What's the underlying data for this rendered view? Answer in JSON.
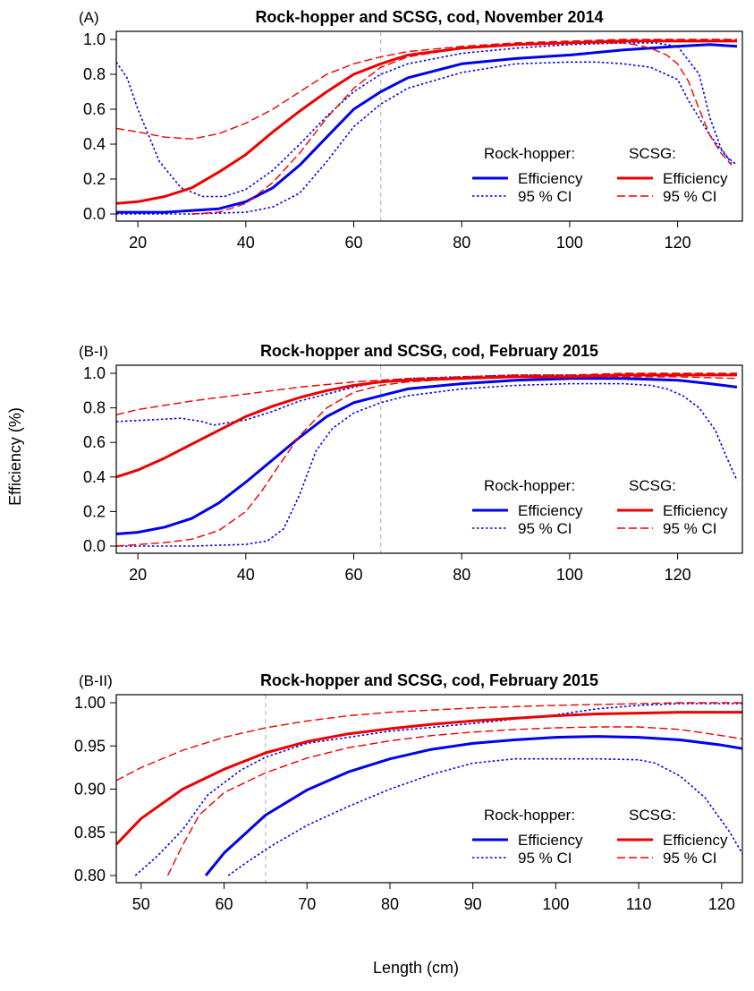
{
  "figure": {
    "ylabel": "Efficiency (%)",
    "xlabel": "Length (cm)",
    "colors": {
      "rockhopper": "#0000ee",
      "scsg": "#ee0000",
      "reference": "#bbbbbb"
    }
  },
  "chart_data": [
    {
      "type": "line",
      "panel_label": "(A)",
      "title": "Rock-hopper and SCSG, cod, November 2014",
      "xlim": [
        16,
        132
      ],
      "ylim": [
        0.0,
        1.0
      ],
      "xticks": [
        20,
        40,
        60,
        80,
        100,
        120
      ],
      "yticks": [
        0.0,
        0.2,
        0.4,
        0.6,
        0.8,
        1.0
      ],
      "ytick_labels": [
        "0.0",
        "0.2",
        "0.4",
        "0.6",
        "0.8",
        "1.0"
      ],
      "reference_x": 65,
      "legend": {
        "groups": [
          {
            "header": "Rock-hopper:",
            "items": [
              "Efficiency",
              "95 % CI"
            ]
          },
          {
            "header": "SCSG:",
            "items": [
              "Efficiency",
              "95 % CI"
            ]
          }
        ]
      },
      "series": [
        {
          "group": "Rock-hopper",
          "kind": "Efficiency",
          "color": "#0000ee",
          "style": "solid",
          "x": [
            16,
            25,
            35,
            40,
            45,
            50,
            55,
            60,
            65,
            70,
            80,
            90,
            100,
            110,
            120,
            126,
            131
          ],
          "y": [
            0.01,
            0.01,
            0.03,
            0.07,
            0.15,
            0.28,
            0.44,
            0.6,
            0.7,
            0.78,
            0.86,
            0.89,
            0.91,
            0.94,
            0.96,
            0.97,
            0.96
          ]
        },
        {
          "group": "Rock-hopper",
          "kind": "95 % CI upper",
          "color": "#0000ee",
          "style": "dotted",
          "x": [
            16,
            18,
            20,
            24,
            28,
            32,
            36,
            40,
            45,
            50,
            55,
            60,
            65,
            70,
            80,
            90,
            100,
            110,
            116,
            120,
            124,
            126,
            128,
            130
          ],
          "y": [
            0.87,
            0.78,
            0.6,
            0.3,
            0.15,
            0.1,
            0.1,
            0.14,
            0.25,
            0.4,
            0.56,
            0.7,
            0.8,
            0.86,
            0.92,
            0.95,
            0.97,
            0.98,
            0.98,
            0.96,
            0.8,
            0.55,
            0.38,
            0.29
          ]
        },
        {
          "group": "Rock-hopper",
          "kind": "95 % CI lower",
          "color": "#0000ee",
          "style": "dotted",
          "x": [
            16,
            30,
            40,
            45,
            50,
            55,
            60,
            65,
            70,
            80,
            90,
            100,
            105,
            110,
            115,
            120,
            122,
            126,
            129,
            131
          ],
          "y": [
            0.0,
            0.0,
            0.01,
            0.04,
            0.12,
            0.3,
            0.5,
            0.63,
            0.72,
            0.81,
            0.86,
            0.87,
            0.87,
            0.86,
            0.84,
            0.77,
            0.65,
            0.45,
            0.33,
            0.28
          ]
        },
        {
          "group": "SCSG",
          "kind": "Efficiency",
          "color": "#ee0000",
          "style": "solid",
          "x": [
            16,
            20,
            25,
            30,
            35,
            40,
            45,
            50,
            55,
            60,
            65,
            70,
            80,
            90,
            100,
            110,
            120,
            125,
            131
          ],
          "y": [
            0.06,
            0.07,
            0.1,
            0.15,
            0.24,
            0.34,
            0.47,
            0.59,
            0.7,
            0.8,
            0.86,
            0.91,
            0.95,
            0.97,
            0.98,
            0.99,
            0.99,
            0.99,
            0.99
          ]
        },
        {
          "group": "SCSG",
          "kind": "95 % CI upper",
          "color": "#ee0000",
          "style": "dashed",
          "x": [
            16,
            20,
            25,
            30,
            35,
            40,
            45,
            50,
            55,
            60,
            65,
            70,
            80,
            90,
            100,
            110,
            120,
            131
          ],
          "y": [
            0.49,
            0.47,
            0.44,
            0.43,
            0.46,
            0.52,
            0.6,
            0.7,
            0.8,
            0.86,
            0.9,
            0.93,
            0.96,
            0.98,
            0.99,
            1.0,
            1.0,
            1.0
          ]
        },
        {
          "group": "SCSG",
          "kind": "95 % CI lower",
          "color": "#ee0000",
          "style": "dashed",
          "x": [
            30,
            35,
            40,
            45,
            50,
            55,
            60,
            65,
            70,
            80,
            90,
            100,
            110,
            112,
            115,
            118,
            120,
            122,
            124,
            126,
            128,
            130
          ],
          "y": [
            0.0,
            0.01,
            0.06,
            0.18,
            0.35,
            0.55,
            0.72,
            0.84,
            0.9,
            0.95,
            0.97,
            0.98,
            0.98,
            0.97,
            0.95,
            0.91,
            0.86,
            0.76,
            0.6,
            0.45,
            0.35,
            0.28
          ]
        }
      ]
    },
    {
      "type": "line",
      "panel_label": "(B-I)",
      "title": "Rock-hopper and SCSG, cod, February 2015",
      "xlim": [
        16,
        132
      ],
      "ylim": [
        0.0,
        1.0
      ],
      "xticks": [
        20,
        40,
        60,
        80,
        100,
        120
      ],
      "yticks": [
        0.0,
        0.2,
        0.4,
        0.6,
        0.8,
        1.0
      ],
      "ytick_labels": [
        "0.0",
        "0.2",
        "0.4",
        "0.6",
        "0.8",
        "1.0"
      ],
      "reference_x": 65,
      "legend": {
        "groups": [
          {
            "header": "Rock-hopper:",
            "items": [
              "Efficiency",
              "95 % CI"
            ]
          },
          {
            "header": "SCSG:",
            "items": [
              "Efficiency",
              "95 % CI"
            ]
          }
        ]
      },
      "series": [
        {
          "group": "Rock-hopper",
          "kind": "Efficiency",
          "color": "#0000ee",
          "style": "solid",
          "x": [
            16,
            20,
            25,
            30,
            35,
            40,
            45,
            50,
            55,
            60,
            65,
            70,
            80,
            90,
            100,
            110,
            120,
            126,
            131
          ],
          "y": [
            0.07,
            0.08,
            0.11,
            0.16,
            0.25,
            0.37,
            0.5,
            0.63,
            0.75,
            0.83,
            0.87,
            0.91,
            0.94,
            0.96,
            0.97,
            0.97,
            0.96,
            0.94,
            0.92
          ]
        },
        {
          "group": "Rock-hopper",
          "kind": "95 % CI upper",
          "color": "#0000ee",
          "style": "dotted",
          "x": [
            16,
            22,
            28,
            32,
            34,
            36,
            40,
            45,
            50,
            55,
            60,
            65,
            70,
            80,
            90,
            100,
            110,
            120,
            131
          ],
          "y": [
            0.72,
            0.73,
            0.74,
            0.72,
            0.7,
            0.71,
            0.73,
            0.78,
            0.84,
            0.88,
            0.92,
            0.95,
            0.97,
            0.98,
            0.99,
            0.99,
            0.99,
            0.99,
            0.99
          ]
        },
        {
          "group": "Rock-hopper",
          "kind": "95 % CI lower",
          "color": "#0000ee",
          "style": "dotted",
          "x": [
            16,
            30,
            40,
            44,
            47,
            50,
            53,
            56,
            60,
            65,
            70,
            80,
            90,
            100,
            110,
            115,
            118,
            121,
            124,
            127,
            129,
            131
          ],
          "y": [
            0.0,
            0.0,
            0.01,
            0.03,
            0.1,
            0.3,
            0.55,
            0.68,
            0.77,
            0.83,
            0.87,
            0.91,
            0.93,
            0.94,
            0.94,
            0.93,
            0.91,
            0.87,
            0.8,
            0.67,
            0.52,
            0.38
          ]
        },
        {
          "group": "SCSG",
          "kind": "Efficiency",
          "color": "#ee0000",
          "style": "solid",
          "x": [
            16,
            20,
            25,
            30,
            35,
            40,
            45,
            50,
            55,
            60,
            65,
            70,
            80,
            90,
            100,
            110,
            120,
            131
          ],
          "y": [
            0.4,
            0.44,
            0.51,
            0.59,
            0.67,
            0.75,
            0.81,
            0.86,
            0.9,
            0.93,
            0.95,
            0.96,
            0.97,
            0.98,
            0.98,
            0.99,
            0.99,
            0.99
          ]
        },
        {
          "group": "SCSG",
          "kind": "95 % CI upper",
          "color": "#ee0000",
          "style": "dashed",
          "x": [
            16,
            20,
            30,
            40,
            50,
            60,
            70,
            80,
            90,
            100,
            110,
            120,
            131
          ],
          "y": [
            0.76,
            0.79,
            0.84,
            0.88,
            0.92,
            0.95,
            0.97,
            0.98,
            0.99,
            0.99,
            1.0,
            1.0,
            1.0
          ]
        },
        {
          "group": "SCSG",
          "kind": "95 % CI lower",
          "color": "#ee0000",
          "style": "dashed",
          "x": [
            16,
            25,
            30,
            35,
            40,
            43,
            46,
            50,
            55,
            60,
            65,
            70,
            80,
            90,
            100,
            110,
            120,
            131
          ],
          "y": [
            0.0,
            0.02,
            0.04,
            0.09,
            0.2,
            0.32,
            0.46,
            0.64,
            0.8,
            0.89,
            0.93,
            0.95,
            0.97,
            0.98,
            0.98,
            0.98,
            0.98,
            0.97
          ]
        }
      ]
    },
    {
      "type": "line",
      "panel_label": "(B-II)",
      "title": "Rock-hopper and SCSG, cod, February 2015",
      "xlim": [
        47,
        122.5
      ],
      "ylim": [
        0.8,
        1.0
      ],
      "xticks": [
        50,
        60,
        70,
        80,
        90,
        100,
        110,
        120
      ],
      "yticks": [
        0.8,
        0.85,
        0.9,
        0.95,
        1.0
      ],
      "ytick_labels": [
        "0.80",
        "0.85",
        "0.90",
        "0.95",
        "1.00"
      ],
      "reference_x": 65,
      "legend": {
        "groups": [
          {
            "header": "Rock-hopper:",
            "items": [
              "Efficiency",
              "95 % CI"
            ]
          },
          {
            "header": "SCSG:",
            "items": [
              "Efficiency",
              "95 % CI"
            ]
          }
        ]
      },
      "series": [
        {
          "group": "Rock-hopper",
          "kind": "Efficiency",
          "color": "#0000ee",
          "style": "solid",
          "x": [
            57.8,
            60,
            65,
            70,
            75,
            80,
            85,
            90,
            95,
            100,
            105,
            110,
            115,
            120,
            122.5
          ],
          "y": [
            0.8,
            0.826,
            0.87,
            0.899,
            0.92,
            0.935,
            0.946,
            0.953,
            0.957,
            0.96,
            0.961,
            0.96,
            0.957,
            0.951,
            0.947
          ]
        },
        {
          "group": "Rock-hopper",
          "kind": "95 % CI upper",
          "color": "#0000ee",
          "style": "dotted",
          "x": [
            49.3,
            52,
            55,
            58,
            62,
            65,
            70,
            80,
            90,
            100,
            105,
            110,
            115,
            120,
            122.5
          ],
          "y": [
            0.8,
            0.823,
            0.853,
            0.893,
            0.922,
            0.937,
            0.953,
            0.967,
            0.976,
            0.986,
            0.993,
            0.997,
            0.999,
            0.999,
            0.999
          ]
        },
        {
          "group": "Rock-hopper",
          "kind": "95 % CI lower",
          "color": "#0000ee",
          "style": "dotted",
          "x": [
            60.5,
            63,
            66,
            70,
            75,
            80,
            85,
            90,
            95,
            100,
            105,
            110,
            112,
            115,
            118,
            121,
            122.5
          ],
          "y": [
            0.8,
            0.817,
            0.836,
            0.858,
            0.88,
            0.9,
            0.917,
            0.93,
            0.935,
            0.935,
            0.935,
            0.934,
            0.93,
            0.915,
            0.89,
            0.85,
            0.825
          ]
        },
        {
          "group": "SCSG",
          "kind": "Efficiency",
          "color": "#ee0000",
          "style": "solid",
          "x": [
            47,
            50,
            55,
            60,
            65,
            70,
            75,
            80,
            85,
            90,
            95,
            100,
            105,
            110,
            115,
            120,
            122.5
          ],
          "y": [
            0.836,
            0.866,
            0.9,
            0.923,
            0.942,
            0.955,
            0.964,
            0.97,
            0.975,
            0.979,
            0.982,
            0.985,
            0.987,
            0.988,
            0.989,
            0.989,
            0.989
          ]
        },
        {
          "group": "SCSG",
          "kind": "95 % CI upper",
          "color": "#ee0000",
          "style": "dashed",
          "x": [
            47,
            50,
            55,
            60,
            65,
            70,
            75,
            80,
            90,
            100,
            110,
            115,
            120,
            122.5
          ],
          "y": [
            0.91,
            0.925,
            0.945,
            0.96,
            0.971,
            0.979,
            0.985,
            0.989,
            0.994,
            0.997,
            0.999,
            1.0,
            1.0,
            1.0
          ]
        },
        {
          "group": "SCSG",
          "kind": "95 % CI lower",
          "color": "#ee0000",
          "style": "dashed",
          "x": [
            53.2,
            55,
            57,
            60,
            65,
            70,
            75,
            80,
            85,
            90,
            95,
            100,
            105,
            110,
            115,
            120,
            122.5
          ],
          "y": [
            0.8,
            0.835,
            0.87,
            0.896,
            0.919,
            0.936,
            0.948,
            0.956,
            0.962,
            0.966,
            0.969,
            0.971,
            0.972,
            0.972,
            0.969,
            0.962,
            0.958
          ]
        }
      ]
    }
  ]
}
